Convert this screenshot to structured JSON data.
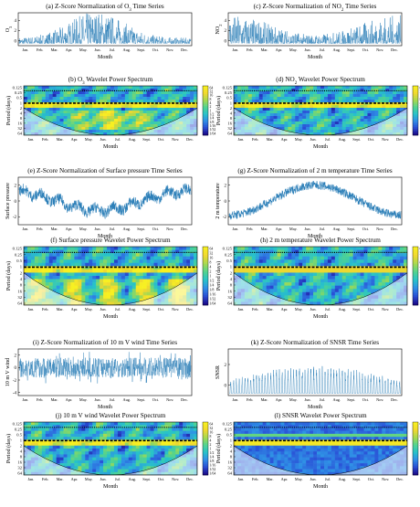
{
  "figure": {
    "months": [
      "Jan.",
      "Feb.",
      "Mar.",
      "Apr.",
      "May.",
      "Jun.",
      "Jul.",
      "Aug.",
      "Sept.",
      "Oct.",
      "Nov.",
      "Dec."
    ],
    "month_label": "Month",
    "period_label": "Period (days)",
    "period_ticks": [
      "0.125",
      "0.25",
      "0.5",
      "1",
      "2",
      "4",
      "8",
      "16",
      "32",
      "64"
    ],
    "colorbar_ticks": [
      "64",
      "32",
      "16",
      "8",
      "4",
      "2",
      "1",
      "1/2",
      "1/4",
      "1/8",
      "1/16",
      "1/32",
      "1/64"
    ],
    "colormap": [
      "#1a0b8a",
      "#2a4fd6",
      "#2f8fe6",
      "#27c3c9",
      "#52d38f",
      "#a8d94f",
      "#f0d830",
      "#f7f021"
    ]
  },
  "chart_data": [
    {
      "type": "line",
      "panel": "a",
      "title": "(a) Z-Score Normalization of O3 Time Series",
      "title_sub": "3",
      "xlabel": "Month",
      "ylabel": "O3",
      "ylabel_sub": "3",
      "yticks": [
        "0",
        "2",
        "4"
      ],
      "ylim": [
        -1,
        5.5
      ]
    },
    {
      "type": "heatmap",
      "panel": "b",
      "title": "(b) O3 Wavelet Power Spectrum",
      "title_sub": "3",
      "xlabel": "Month",
      "ylabel": "Period (days)"
    },
    {
      "type": "line",
      "panel": "c",
      "title": "(c) Z-Score Normalization of NO2 Time Series",
      "title_sub": "2",
      "xlabel": "Month",
      "ylabel": "NO2",
      "ylabel_sub": "2",
      "yticks": [
        "0",
        "2",
        "4"
      ],
      "ylim": [
        -1,
        5.5
      ]
    },
    {
      "type": "heatmap",
      "panel": "d",
      "title": "(d) NO2 Wavelet Power Spectrum",
      "title_sub": "2",
      "xlabel": "Month",
      "ylabel": "Period (days)"
    },
    {
      "type": "line",
      "panel": "e",
      "title": "(e) Z-Score Normalization of Surface pressure Time Series",
      "xlabel": "Month",
      "ylabel": "Surface pressure",
      "yticks": [
        "-2",
        "0",
        "2"
      ],
      "ylim": [
        -3,
        3
      ]
    },
    {
      "type": "heatmap",
      "panel": "f",
      "title": "(f) Surface pressure Wavelet Power Spectrum",
      "xlabel": "Month",
      "ylabel": "Period (days)"
    },
    {
      "type": "line",
      "panel": "g",
      "title": "(g) Z-Score Normalization of 2 m temperature Time Series",
      "xlabel": "Month",
      "ylabel": "2 m temperature",
      "yticks": [
        "-2",
        "0",
        "2"
      ],
      "ylim": [
        -3,
        3
      ]
    },
    {
      "type": "heatmap",
      "panel": "h",
      "title": "(h) 2 m temperature Wavelet Power Spectrum",
      "xlabel": "Month",
      "ylabel": "Period (days)"
    },
    {
      "type": "line",
      "panel": "i",
      "title": "(i) Z-Score Normalization of 10 m V wind Time Series",
      "xlabel": "Month",
      "ylabel": "10 m V wind",
      "yticks": [
        "-4",
        "-2",
        "0",
        "2"
      ],
      "ylim": [
        -4.5,
        3
      ]
    },
    {
      "type": "heatmap",
      "panel": "j",
      "title": "(j) 10 m V wind Wavelet Power Spectrum",
      "xlabel": "Month",
      "ylabel": "Period (days)"
    },
    {
      "type": "line",
      "panel": "k",
      "title": "(k) Z-Score Normalization of SNSR Time Series",
      "xlabel": "Month",
      "ylabel": "SNSR",
      "yticks": [
        "0",
        "2"
      ],
      "ylim": [
        -1,
        3.5
      ]
    },
    {
      "type": "heatmap",
      "panel": "l",
      "title": "(l) SNSR Wavelet Power Spectrum",
      "xlabel": "Month",
      "ylabel": "Period (days)"
    }
  ]
}
